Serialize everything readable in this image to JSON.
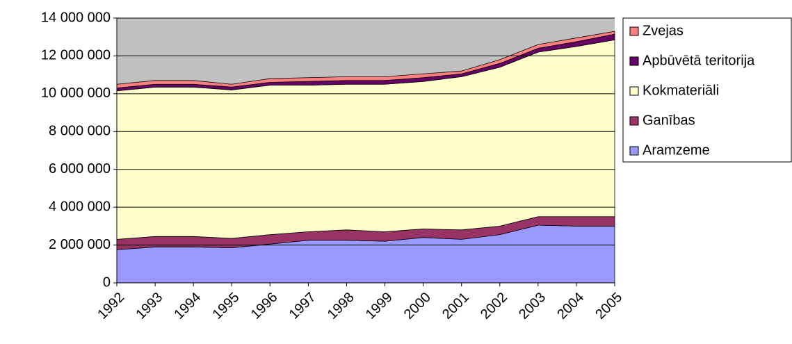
{
  "chart_data": {
    "type": "stacked_area",
    "categories": [
      "1992",
      "1993",
      "1994",
      "1995",
      "1996",
      "1997",
      "1998",
      "1999",
      "2000",
      "2001",
      "2002",
      "2003",
      "2004",
      "2005"
    ],
    "series": [
      {
        "name": "Aramzeme",
        "color": "#9999ff",
        "values": [
          1750000,
          1900000,
          1900000,
          1850000,
          2050000,
          2250000,
          2250000,
          2200000,
          2400000,
          2300000,
          2550000,
          3050000,
          3000000,
          3000000
        ]
      },
      {
        "name": "Ganības",
        "color": "#993366",
        "values": [
          550000,
          550000,
          550000,
          500000,
          500000,
          450000,
          550000,
          500000,
          450000,
          500000,
          450000,
          450000,
          500000,
          500000
        ]
      },
      {
        "name": "Kokmateriāli",
        "color": "#ffffcc",
        "values": [
          7850000,
          7900000,
          7900000,
          7850000,
          7900000,
          7750000,
          7700000,
          7800000,
          7800000,
          8100000,
          8400000,
          8700000,
          9000000,
          9350000
        ]
      },
      {
        "name": "Apbūvētā teritorija",
        "color": "#660066",
        "values": [
          150000,
          150000,
          150000,
          150000,
          150000,
          200000,
          200000,
          200000,
          200000,
          150000,
          200000,
          200000,
          250000,
          300000
        ]
      },
      {
        "name": "Zvejas",
        "color": "#ff8080",
        "values": [
          200000,
          200000,
          200000,
          150000,
          200000,
          200000,
          200000,
          200000,
          200000,
          150000,
          200000,
          200000,
          200000,
          150000
        ]
      }
    ],
    "ylim": [
      0,
      14000000
    ],
    "yticks": [
      {
        "value": 0,
        "label": "0"
      },
      {
        "value": 2000000,
        "label": "2 000 000"
      },
      {
        "value": 4000000,
        "label": "4 000 000"
      },
      {
        "value": 6000000,
        "label": "6 000 000"
      },
      {
        "value": 8000000,
        "label": "8 000 000"
      },
      {
        "value": 10000000,
        "label": "10 000 000"
      },
      {
        "value": 12000000,
        "label": "12 000 000"
      },
      {
        "value": 14000000,
        "label": "14 000 000"
      }
    ],
    "grid": true,
    "plot_background": "#c0c0c0",
    "legend": "right"
  }
}
